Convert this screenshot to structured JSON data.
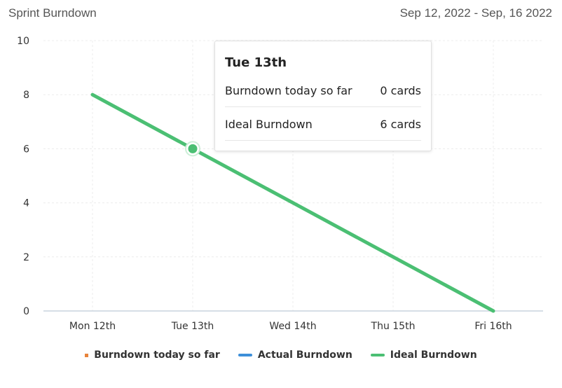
{
  "header": {
    "title": "Sprint Burndown",
    "date_range": "Sep 12, 2022 - Sep, 16 2022"
  },
  "tooltip": {
    "title": "Tue 13th",
    "rows": [
      {
        "label": "Burndown today so far",
        "value": "0 cards"
      },
      {
        "label": "Ideal Burndown",
        "value": "6 cards"
      }
    ]
  },
  "legend": [
    {
      "label": "Burndown today so far",
      "color": "#e8833a",
      "style": "dot"
    },
    {
      "label": "Actual Burndown",
      "color": "#3d8fd9",
      "style": "line"
    },
    {
      "label": "Ideal Burndown",
      "color": "#4bbf73",
      "style": "line"
    }
  ],
  "chart_data": {
    "type": "line",
    "categories": [
      "Mon 12th",
      "Tue 13th",
      "Wed 14th",
      "Thu 15th",
      "Fri 16th"
    ],
    "ylim": [
      0,
      10
    ],
    "yticks": [
      0,
      2,
      4,
      6,
      8,
      10
    ],
    "grid": true,
    "legend_position": "bottom",
    "highlighted_category": "Tue 13th",
    "series": [
      {
        "name": "Burndown today so far",
        "values": [
          null,
          0,
          null,
          null,
          null
        ],
        "color": "#e8833a"
      },
      {
        "name": "Actual Burndown",
        "values": [
          null,
          null,
          null,
          null,
          null
        ],
        "color": "#3d8fd9"
      },
      {
        "name": "Ideal Burndown",
        "values": [
          8,
          6,
          4,
          2,
          0
        ],
        "color": "#4bbf73"
      }
    ]
  }
}
